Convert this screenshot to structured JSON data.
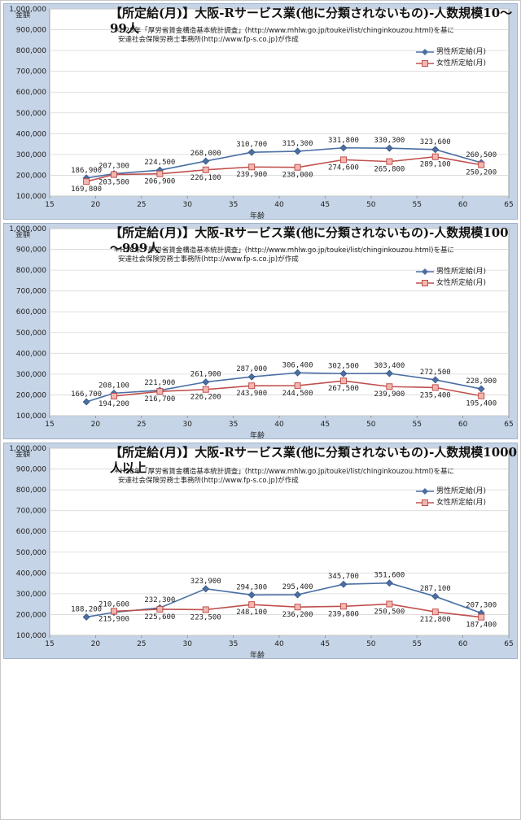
{
  "chart_data": [
    {
      "type": "line",
      "title": "【所定給(月)】大阪-Rサービス業(他に分類されないもの)-人数規模10～99人",
      "note_line1": "＊H28年「厚労省賃金構造基本統計調査」(http://www.mhlw.go.jp/toukei/list/chinginkouzou.html)を基に",
      "note_line2": "安達社会保険労務士事務所(http://www.fp-s.co.jp)が作成",
      "ylabel": "金額",
      "xlabel": "年齢",
      "xlim": [
        15,
        65
      ],
      "ylim": [
        100000,
        1000000
      ],
      "x": [
        19,
        22,
        27,
        32,
        37,
        42,
        47,
        52,
        57,
        62
      ],
      "series": [
        {
          "name": "男性所定給(月)",
          "color": "#4a6fa5",
          "marker": "diamond",
          "values": [
            186900,
            207300,
            224500,
            268000,
            310700,
            315300,
            331800,
            330300,
            323600,
            260500
          ],
          "labels": [
            "186,900",
            "207,300",
            "224,500",
            "268,000",
            "310,700",
            "315,300",
            "331,800",
            "330,300",
            "323,600",
            "260,500"
          ]
        },
        {
          "name": "女性所定給(月)",
          "color": "#c0504d",
          "marker": "square",
          "values": [
            169800,
            203500,
            206900,
            226100,
            239900,
            238000,
            274600,
            265800,
            289100,
            250200
          ],
          "labels": [
            "169,800",
            "203,500",
            "206,900",
            "226,100",
            "239,900",
            "238,000",
            "274,600",
            "265,800",
            "289,100",
            "250,200"
          ]
        }
      ]
    },
    {
      "type": "line",
      "title": "【所定給(月)】大阪-Rサービス業(他に分類されないもの)-人数規模100～999人",
      "note_line1": "＊H28年「厚労省賃金構造基本統計調査」(http://www.mhlw.go.jp/toukei/list/chinginkouzou.html)を基に",
      "note_line2": "安達社会保険労務士事務所(http://www.fp-s.co.jp)が作成",
      "ylabel": "金額",
      "xlabel": "年齢",
      "xlim": [
        15,
        65
      ],
      "ylim": [
        100000,
        1000000
      ],
      "x": [
        19,
        22,
        27,
        32,
        37,
        42,
        47,
        52,
        57,
        62
      ],
      "series": [
        {
          "name": "男性所定給(月)",
          "color": "#4a6fa5",
          "marker": "diamond",
          "values": [
            166700,
            208100,
            221900,
            261900,
            287000,
            306400,
            302500,
            303400,
            272500,
            228900
          ],
          "labels": [
            "166,700",
            "208,100",
            "221,900",
            "261,900",
            "287,000",
            "306,400",
            "302,500",
            "303,400",
            "272,500",
            "228,900"
          ]
        },
        {
          "name": "女性所定給(月)",
          "color": "#c0504d",
          "marker": "square",
          "values": [
            null,
            194200,
            216700,
            226200,
            243900,
            244500,
            267500,
            239900,
            235400,
            195400
          ],
          "labels": [
            "",
            "194,200",
            "216,700",
            "226,200",
            "243,900",
            "244,500",
            "267,500",
            "239,900",
            "235,400",
            "195,400"
          ]
        }
      ]
    },
    {
      "type": "line",
      "title": "【所定給(月)】大阪-Rサービス業(他に分類されないもの)-人数規模1000人以上",
      "note_line1": "＊H28年「厚労省賃金構造基本統計調査」(http://www.mhlw.go.jp/toukei/list/chinginkouzou.html)を基に",
      "note_line2": "安達社会保険労務士事務所(http://www.fp-s.co.jp)が作成",
      "ylabel": "金額",
      "xlabel": "年齢",
      "xlim": [
        15,
        65
      ],
      "ylim": [
        100000,
        1000000
      ],
      "x": [
        19,
        22,
        27,
        32,
        37,
        42,
        47,
        52,
        57,
        62
      ],
      "series": [
        {
          "name": "男性所定給(月)",
          "color": "#4a6fa5",
          "marker": "diamond",
          "values": [
            188200,
            210600,
            232300,
            323900,
            294300,
            295400,
            345700,
            351600,
            287100,
            207300
          ],
          "labels": [
            "188,200",
            "210,600",
            "232,300",
            "323,900",
            "294,300",
            "295,400",
            "345,700",
            "351,600",
            "287,100",
            "207,300"
          ]
        },
        {
          "name": "女性所定給(月)",
          "color": "#c0504d",
          "marker": "square",
          "values": [
            null,
            215900,
            225600,
            223500,
            248100,
            236200,
            239800,
            250500,
            212800,
            187400
          ],
          "labels": [
            "",
            "215,900",
            "225,600",
            "223,500",
            "248,100",
            "236,200",
            "239,800",
            "250,500",
            "212,800",
            "187,400"
          ]
        }
      ]
    }
  ],
  "axis": {
    "y_ticks": [
      "100,000",
      "200,000",
      "300,000",
      "400,000",
      "500,000",
      "600,000",
      "700,000",
      "800,000",
      "900,000",
      "1,000,000"
    ],
    "x_ticks": [
      "15",
      "20",
      "25",
      "30",
      "35",
      "40",
      "45",
      "50",
      "55",
      "60",
      "65"
    ]
  }
}
